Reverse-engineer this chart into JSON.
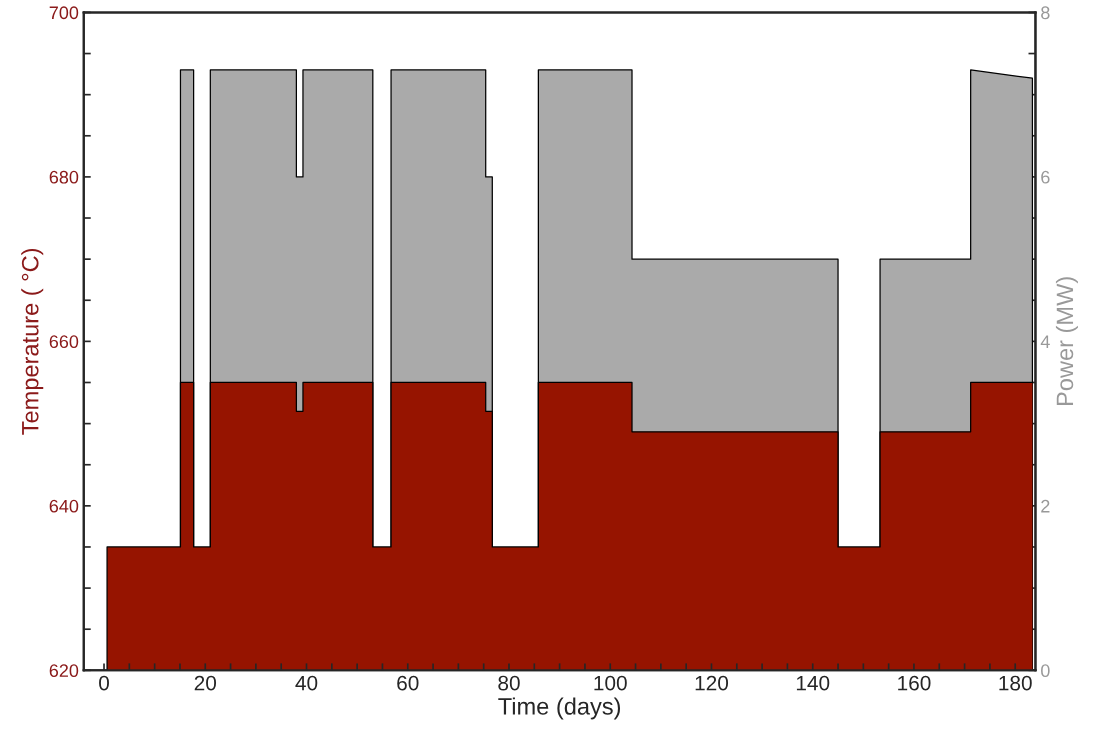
{
  "chart_data": {
    "type": "area",
    "xlabel": "Time (days)",
    "ylabel": "Temperature ( °C)",
    "y2label": "Power (MW)",
    "xlim": [
      -4,
      184
    ],
    "ylim": [
      620,
      700
    ],
    "y2lim": [
      0,
      8
    ],
    "xticks": [
      0,
      {
        "value": 5,
        "label": null
      },
      {
        "value": 10,
        "label": null
      },
      {
        "value": 15,
        "label": null
      },
      20,
      {
        "value": 25,
        "label": null
      },
      {
        "value": 30,
        "label": null
      },
      {
        "value": 35,
        "label": null
      },
      40,
      {
        "value": 45,
        "label": null
      },
      {
        "value": 50,
        "label": null
      },
      {
        "value": 55,
        "label": null
      },
      60,
      {
        "value": 65,
        "label": null
      },
      {
        "value": 70,
        "label": null
      },
      {
        "value": 75,
        "label": null
      },
      80,
      {
        "value": 85,
        "label": null
      },
      {
        "value": 90,
        "label": null
      },
      {
        "value": 95,
        "label": null
      },
      100,
      {
        "value": 105,
        "label": null
      },
      {
        "value": 110,
        "label": null
      },
      {
        "value": 115,
        "label": null
      },
      120,
      {
        "value": 125,
        "label": null
      },
      {
        "value": 130,
        "label": null
      },
      {
        "value": 135,
        "label": null
      },
      140,
      {
        "value": 145,
        "label": null
      },
      {
        "value": 150,
        "label": null
      },
      {
        "value": 155,
        "label": null
      },
      160,
      {
        "value": 165,
        "label": null
      },
      {
        "value": 170,
        "label": null
      },
      {
        "value": 175,
        "label": null
      },
      180
    ],
    "yticks": [
      620,
      {
        "value": 625,
        "label": null
      },
      {
        "value": 630,
        "label": null
      },
      {
        "value": 635,
        "label": null
      },
      640,
      {
        "value": 645,
        "label": null
      },
      {
        "value": 650,
        "label": null
      },
      {
        "value": 655,
        "label": null
      },
      660,
      {
        "value": 665,
        "label": null
      },
      {
        "value": 670,
        "label": null
      },
      {
        "value": 675,
        "label": null
      },
      680,
      {
        "value": 685,
        "label": null
      },
      {
        "value": 690,
        "label": null
      },
      {
        "value": 695,
        "label": null
      },
      700
    ],
    "y2ticks": [
      0,
      {
        "value": 0.5,
        "label": null
      },
      {
        "value": 1,
        "label": null
      },
      {
        "value": 1.5,
        "label": null
      },
      2,
      {
        "value": 2.5,
        "label": null
      },
      {
        "value": 3,
        "label": null
      },
      {
        "value": 3.5,
        "label": null
      },
      4,
      {
        "value": 4.5,
        "label": null
      },
      {
        "value": 5,
        "label": null
      },
      {
        "value": 5.5,
        "label": null
      },
      6,
      {
        "value": 6.5,
        "label": null
      },
      {
        "value": 7,
        "label": null
      },
      {
        "value": 7.5,
        "label": null
      },
      8
    ],
    "grid": false,
    "series": [
      {
        "color": "#aaaaaa",
        "axis": "y2",
        "x": [
          15.1,
          15.1,
          17.7,
          17.7,
          21,
          21,
          38,
          38,
          39.3,
          39.3,
          53.1,
          53.1,
          56.7,
          56.7,
          75.4,
          75.4,
          76.7,
          76.7,
          85.8,
          85.8,
          104.3,
          104.3,
          145,
          145,
          153.3,
          153.3,
          171.2,
          171.2,
          183.4,
          183.4
        ],
        "values": [
          0,
          7.3,
          7.3,
          0,
          0,
          7.3,
          7.3,
          6,
          6,
          7.3,
          7.3,
          0,
          0,
          7.3,
          7.3,
          6,
          6,
          0,
          0,
          7.3,
          7.3,
          5,
          5,
          0,
          0,
          5,
          5,
          7.3,
          7.2,
          0
        ]
      },
      {
        "color": "#961400",
        "axis": "y",
        "x": [
          0.6,
          0.6,
          15.1,
          15.1,
          17.7,
          17.7,
          21,
          21,
          38,
          38,
          39.3,
          39.3,
          53.1,
          53.1,
          56.7,
          56.7,
          75.4,
          75.4,
          76.7,
          76.7,
          85.8,
          85.8,
          104.3,
          104.3,
          145,
          145,
          153.3,
          153.3,
          171.2,
          171.2,
          183.4
        ],
        "values": [
          620,
          635,
          635,
          655,
          655,
          635,
          635,
          655,
          655,
          651.5,
          651.5,
          655,
          655,
          635,
          635,
          655,
          655,
          651.5,
          651.5,
          635,
          635,
          655,
          655,
          649,
          649,
          635,
          635,
          649,
          649,
          655,
          655
        ]
      }
    ]
  }
}
